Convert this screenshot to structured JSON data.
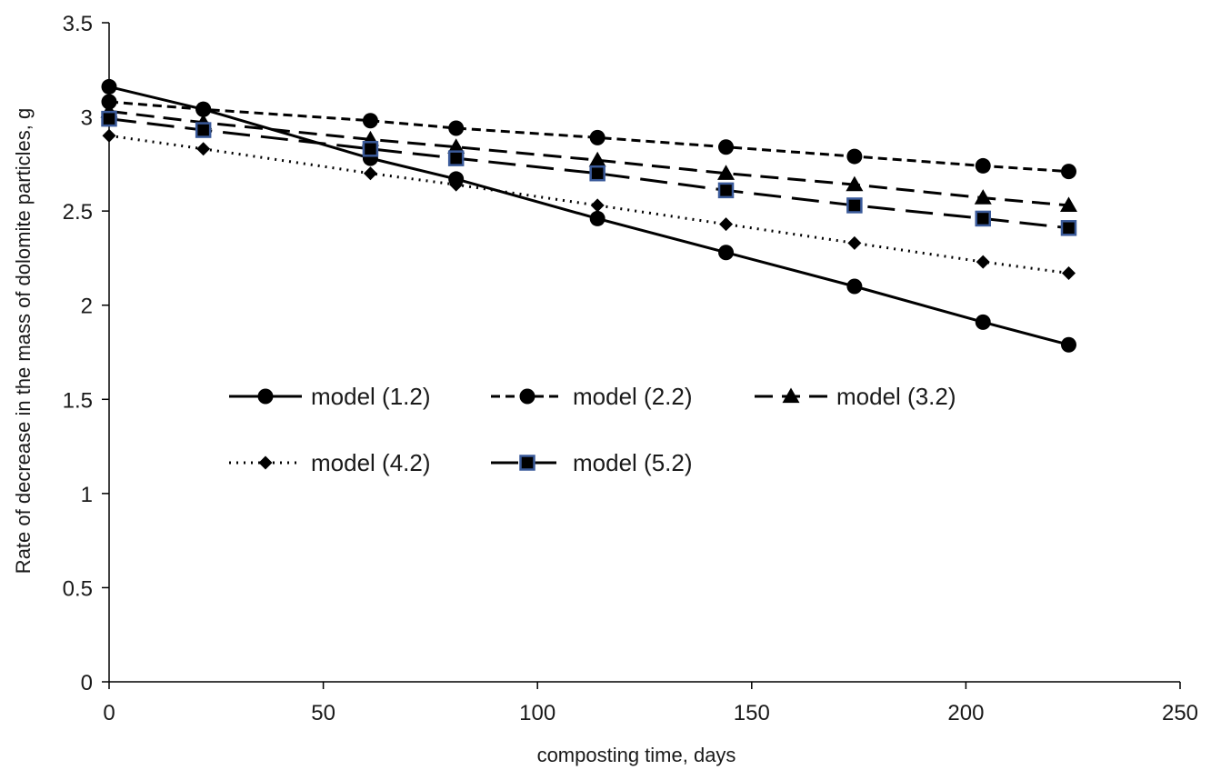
{
  "chart_data": {
    "type": "line",
    "title": "",
    "xlabel": "composting time, days",
    "ylabel": "Rate of decrease in the mass of dolomite particles, g",
    "xlim": [
      0,
      250
    ],
    "ylim": [
      0,
      3.5
    ],
    "x_ticks": [
      "0",
      "50",
      "100",
      "150",
      "200",
      "250"
    ],
    "y_ticks": [
      "0",
      "0.5",
      "1",
      "1.5",
      "2",
      "2.5",
      "3",
      "3.5"
    ],
    "grid": false,
    "legend_position": "center",
    "x": [
      0,
      22,
      61,
      81,
      114,
      144,
      174,
      204,
      224
    ],
    "series": [
      {
        "name": "model (1.2)",
        "line_style": "solid",
        "marker": "circle",
        "values": [
          3.16,
          3.04,
          2.78,
          2.67,
          2.46,
          2.28,
          2.1,
          1.91,
          1.79
        ]
      },
      {
        "name": "model (2.2)",
        "line_style": "short-dash",
        "marker": "circle",
        "values": [
          3.08,
          3.04,
          2.98,
          2.94,
          2.89,
          2.84,
          2.79,
          2.74,
          2.71
        ]
      },
      {
        "name": "model (3.2)",
        "line_style": "dash",
        "marker": "triangle",
        "values": [
          3.03,
          2.97,
          2.88,
          2.84,
          2.77,
          2.7,
          2.64,
          2.57,
          2.53
        ]
      },
      {
        "name": "model (4.2)",
        "line_style": "dotted",
        "marker": "diamond",
        "values": [
          2.9,
          2.83,
          2.7,
          2.64,
          2.53,
          2.43,
          2.33,
          2.23,
          2.17
        ]
      },
      {
        "name": "model (5.2)",
        "line_style": "long-dash",
        "marker": "square",
        "values": [
          2.99,
          2.93,
          2.83,
          2.78,
          2.7,
          2.61,
          2.53,
          2.46,
          2.41
        ]
      }
    ],
    "colors": {
      "line": "#000000",
      "marker_fill": "#000000",
      "square_marker_edge": "#3a5a9a"
    }
  }
}
